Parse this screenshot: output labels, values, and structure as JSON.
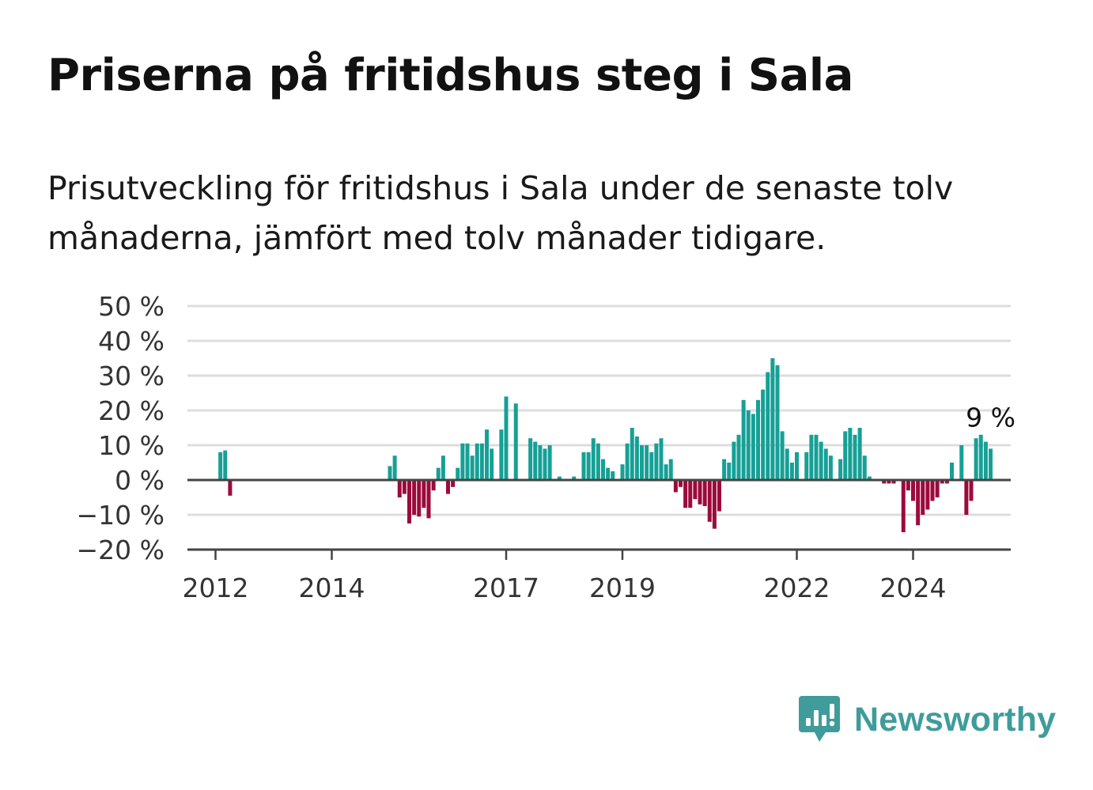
{
  "title": "Priserna på fritidshus steg i Sala",
  "subtitle": "Prisutveckling för fritidshus i Sala under de senaste tolv månaderna, jämfört med tolv månader tidigare.",
  "brand": {
    "name": "Newsworthy",
    "icon": "newsworthy-logo-icon",
    "color": "#3f9c9b"
  },
  "colors": {
    "positive": "#16a096",
    "negative": "#9c0a3c",
    "grid": "#dddddd",
    "axis": "#444444"
  },
  "chart_data": {
    "type": "bar",
    "title": "",
    "xlabel": "",
    "ylabel": "",
    "ylim": [
      -20,
      50
    ],
    "y_ticks": [
      50,
      40,
      30,
      20,
      10,
      0,
      -10,
      -20
    ],
    "y_tick_labels": [
      "50 %",
      "40 %",
      "30 %",
      "20 %",
      "10 %",
      "0 %",
      "−10 %",
      "−20 %"
    ],
    "x_ticks": [
      2012,
      2014,
      2017,
      2019,
      2022,
      2024
    ],
    "x_tick_labels": [
      "2012",
      "2014",
      "2017",
      "2019",
      "2022",
      "2024"
    ],
    "grid": true,
    "start": "2012-01",
    "frequency": "monthly",
    "values": [
      null,
      8,
      8.5,
      -4.5,
      null,
      null,
      null,
      null,
      null,
      null,
      null,
      null,
      null,
      null,
      null,
      null,
      null,
      null,
      null,
      null,
      null,
      null,
      null,
      null,
      null,
      null,
      null,
      null,
      null,
      null,
      null,
      null,
      null,
      null,
      null,
      null,
      4,
      7,
      -5,
      -4,
      -12.5,
      -10,
      -10.5,
      -8,
      -11,
      -3,
      3.5,
      7,
      -4,
      -2,
      3.5,
      10.5,
      10.5,
      7,
      10.5,
      10.5,
      14.5,
      9,
      null,
      14.5,
      24,
      null,
      22,
      null,
      null,
      12,
      11,
      10,
      9,
      10,
      null,
      1,
      null,
      null,
      1,
      null,
      8,
      8,
      12,
      10.5,
      6,
      3.5,
      2.5,
      null,
      4.5,
      10.5,
      15,
      12.5,
      10,
      10,
      8,
      10.5,
      12,
      4.5,
      6,
      -3.5,
      -2,
      -8,
      -8,
      -5.5,
      -7,
      -7.5,
      -12,
      -14,
      -9,
      6,
      5,
      11,
      13,
      23,
      20,
      19,
      23,
      26,
      31,
      35,
      33,
      14,
      9,
      5,
      8,
      null,
      8,
      13,
      13,
      11,
      9,
      7,
      null,
      6,
      14,
      15,
      13,
      15,
      7,
      1,
      null,
      null,
      -1,
      -1,
      -1,
      null,
      -15,
      -3,
      -6,
      -13,
      -10,
      -8.5,
      -6,
      -5,
      -1,
      -1,
      5,
      null,
      10,
      -10,
      -6,
      12,
      13,
      11,
      9
    ],
    "last_label": "9 %"
  }
}
